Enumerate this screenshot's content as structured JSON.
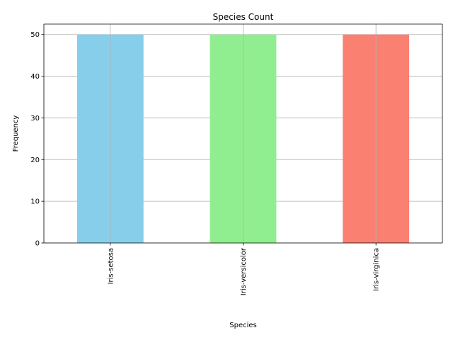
{
  "chart_data": {
    "type": "bar",
    "title": "Species Count",
    "xlabel": "Species",
    "ylabel": "Frequency",
    "categories": [
      "Iris-setosa",
      "Iris-versicolor",
      "Iris-virginica"
    ],
    "values": [
      50,
      50,
      50
    ],
    "colors": [
      "#87ceeb",
      "#90ee90",
      "#fa8072"
    ],
    "ylim": [
      0,
      52.5
    ],
    "yticks": [
      0,
      10,
      20,
      30,
      40,
      50
    ],
    "grid": true,
    "xtick_rotation": "vertical"
  }
}
